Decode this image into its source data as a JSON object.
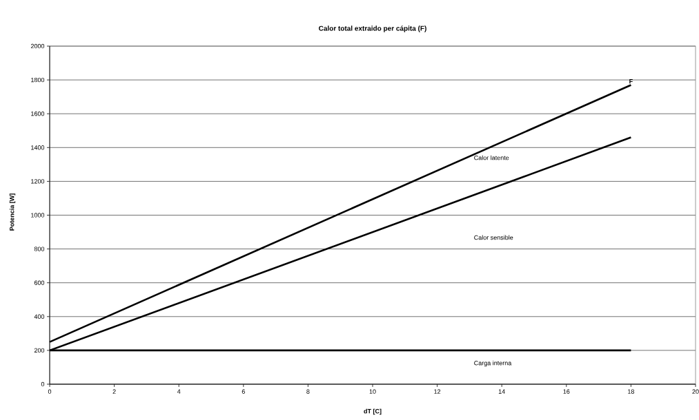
{
  "chart_data": {
    "type": "line",
    "title": "Calor total extraido per cápita (F)",
    "xlabel": "dT [C]",
    "ylabel": "Potencia [W]",
    "x": [
      0,
      18
    ],
    "series": [
      {
        "color": "#000000",
        "values": [
          250,
          1770
        ]
      },
      {
        "color": "#000000",
        "values": [
          200,
          1460
        ]
      },
      {
        "color": "#000000",
        "values": [
          200,
          200
        ]
      }
    ],
    "xlim": [
      0,
      20
    ],
    "ylim": [
      0,
      2000
    ],
    "xticks": [
      0,
      2,
      4,
      6,
      8,
      10,
      12,
      14,
      16,
      18,
      20
    ],
    "yticks": [
      0,
      200,
      400,
      600,
      800,
      1000,
      1200,
      1400,
      1600,
      1800,
      2000
    ],
    "grid": "y",
    "marker": "none",
    "line_style": "solid",
    "annotations": [
      "F",
      "Calor latente",
      "Calor sensible",
      "Carga interna"
    ]
  }
}
